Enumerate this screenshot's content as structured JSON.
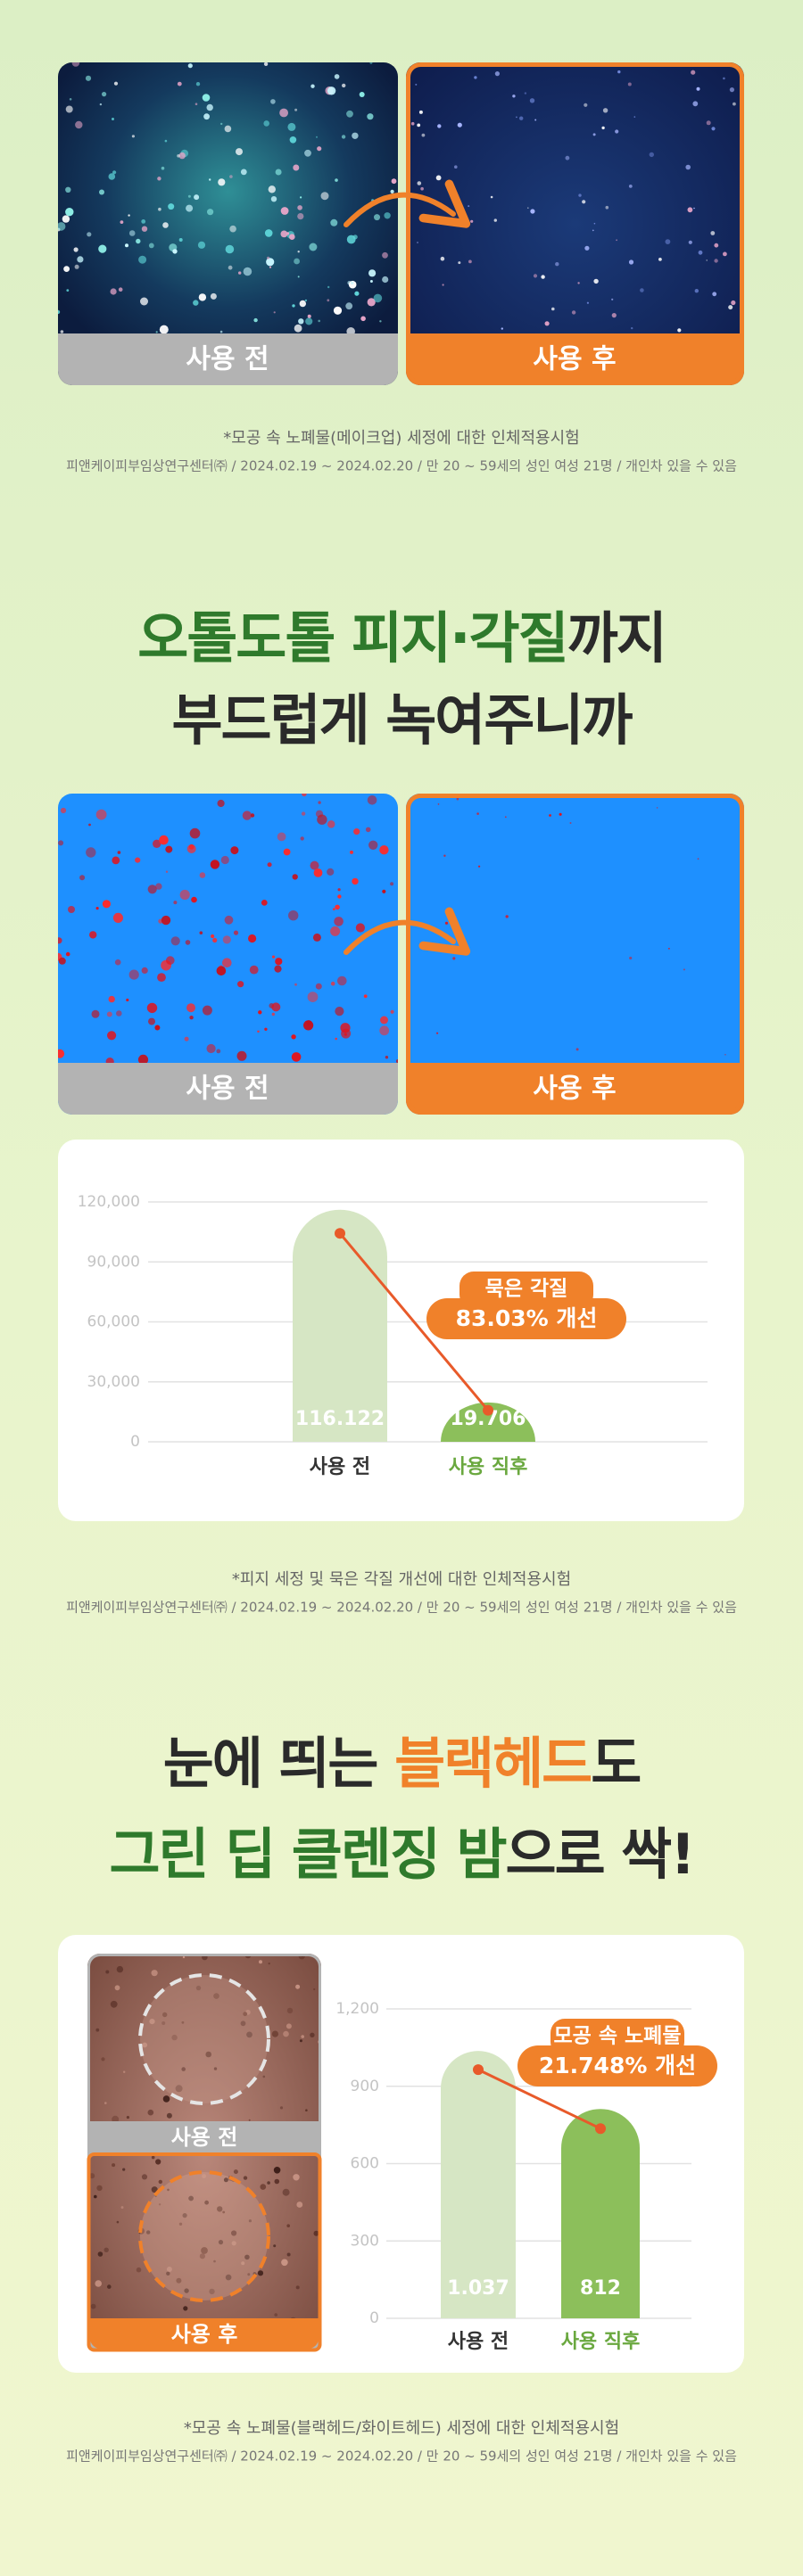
{
  "section1": {
    "before_label": "사용 전",
    "after_label": "사용 후",
    "footnote": "*모공 속 노폐물(메이크업) 세정에 대한 인체적용시험",
    "footnote_detail": "피앤케이피부임상연구센터㈜ / 2024.02.19 ~ 2024.02.20 / 만 20 ~ 59세의 성인 여성 21명 / 개인차 있을 수 있음"
  },
  "headline1": {
    "highlight": "오톨도톨 피지·각질",
    "rest": "까지",
    "line2": "부드럽게 녹여주니까"
  },
  "section2": {
    "before_label": "사용 전",
    "after_label": "사용 후",
    "footnote": "*피지 세정 및 묵은 각질 개선에 대한 인체적용시험",
    "footnote_detail": "피앤케이피부임상연구센터㈜ / 2024.02.19 ~ 2024.02.20 / 만 20 ~ 59세의 성인 여성 21명 / 개인차 있을 수 있음"
  },
  "headline2": {
    "start": "눈에 띄는 ",
    "highlight": "블랙헤드",
    "end": "도",
    "line2_highlight": "그린 딥 클렌징 밤",
    "line2_rest": "으로 싹!"
  },
  "section3": {
    "before_label": "사용 전",
    "after_label": "사용 후",
    "footnote": "*모공 속 노폐물(블랙헤드/화이트헤드) 세정에 대한 인체적용시험",
    "footnote_detail": "피앤케이피부임상연구센터㈜ / 2024.02.19 ~ 2024.02.20 / 만 20 ~ 59세의 성인 여성 21명 / 개인차 있을 수 있음"
  },
  "chart_data": [
    {
      "type": "bar",
      "categories": [
        "사용 전",
        "사용 직후"
      ],
      "values": [
        116122,
        19706
      ],
      "value_labels": [
        "116.122",
        "19.706"
      ],
      "colors": [
        "#d6e6c4",
        "#8cbf5b"
      ],
      "ylim": [
        0,
        120000
      ],
      "yticks": [
        0,
        {
          "value": 30000,
          "label": "30,000"
        },
        {
          "value": 60000,
          "label": "60,000"
        },
        {
          "value": 90000,
          "label": "90,000"
        },
        {
          "value": 120000,
          "label": "120,000"
        }
      ],
      "grid": true,
      "annotation": {
        "title": "묵은 각질",
        "text": "83.03% 개선"
      }
    },
    {
      "type": "bar",
      "categories": [
        "사용 전",
        "사용 직후"
      ],
      "values": [
        1037,
        812
      ],
      "value_labels": [
        "1.037",
        "812"
      ],
      "colors": [
        "#d6e6c4",
        "#8cbf5b"
      ],
      "ylim": [
        0,
        1200
      ],
      "yticks": [
        0,
        300,
        600,
        900,
        {
          "value": 1200,
          "label": "1,200"
        }
      ],
      "grid": true,
      "annotation": {
        "title": "모공 속 노폐물",
        "text": "21.748% 개선"
      }
    }
  ]
}
